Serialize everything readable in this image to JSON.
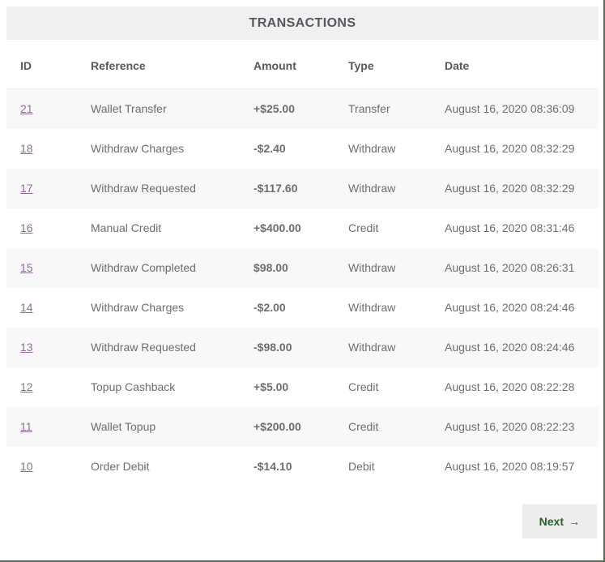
{
  "title": "TRANSACTIONS",
  "table": {
    "headers": [
      "ID",
      "Reference",
      "Amount",
      "Type",
      "Date"
    ],
    "rows": [
      {
        "id": "21",
        "reference": "Wallet Transfer",
        "amount": "+$25.00",
        "amount_color": "green",
        "type": "Transfer",
        "date": "August 16, 2020 08:36:09"
      },
      {
        "id": "18",
        "reference": "Withdraw Charges",
        "amount": "-$2.40",
        "amount_color": "red",
        "type": "Withdraw",
        "date": "August 16, 2020 08:32:29"
      },
      {
        "id": "17",
        "reference": "Withdraw Requested",
        "amount": "-$117.60",
        "amount_color": "red",
        "type": "Withdraw",
        "date": "August 16, 2020 08:32:29"
      },
      {
        "id": "16",
        "reference": "Manual Credit",
        "amount": "+$400.00",
        "amount_color": "green",
        "type": "Credit",
        "date": "August 16, 2020 08:31:46"
      },
      {
        "id": "15",
        "reference": "Withdraw Completed",
        "amount": "$98.00",
        "amount_color": "blue",
        "type": "Withdraw",
        "date": "August 16, 2020 08:26:31"
      },
      {
        "id": "14",
        "reference": "Withdraw Charges",
        "amount": "-$2.00",
        "amount_color": "red",
        "type": "Withdraw",
        "date": "August 16, 2020 08:24:46"
      },
      {
        "id": "13",
        "reference": "Withdraw Requested",
        "amount": "-$98.00",
        "amount_color": "red",
        "type": "Withdraw",
        "date": "August 16, 2020 08:24:46"
      },
      {
        "id": "12",
        "reference": "Topup Cashback",
        "amount": "+$5.00",
        "amount_color": "green",
        "type": "Credit",
        "date": "August 16, 2020 08:22:28"
      },
      {
        "id": "11",
        "reference": "Wallet Topup",
        "amount": "+$200.00",
        "amount_color": "green",
        "type": "Credit",
        "date": "August 16, 2020 08:22:23"
      },
      {
        "id": "10",
        "reference": "Order Debit",
        "amount": "-$14.10",
        "amount_color": "red",
        "type": "Debit",
        "date": "August 16, 2020 08:19:57"
      }
    ]
  },
  "pagination": {
    "next_label": "Next",
    "next_arrow": "→"
  },
  "colors": {
    "title_bar_bg": "#f0f0f0",
    "heading_text": "#55585e",
    "body_text": "#6e6e6e",
    "id_link": "#8d6e97",
    "row_stripe": "#f8f8f8",
    "amount_green": "#008000",
    "amount_red": "#fd0000",
    "amount_blue": "#0808fe",
    "button_bg": "#ededed",
    "button_text": "#2b5f2f",
    "page_border_green": "#4c7153"
  }
}
